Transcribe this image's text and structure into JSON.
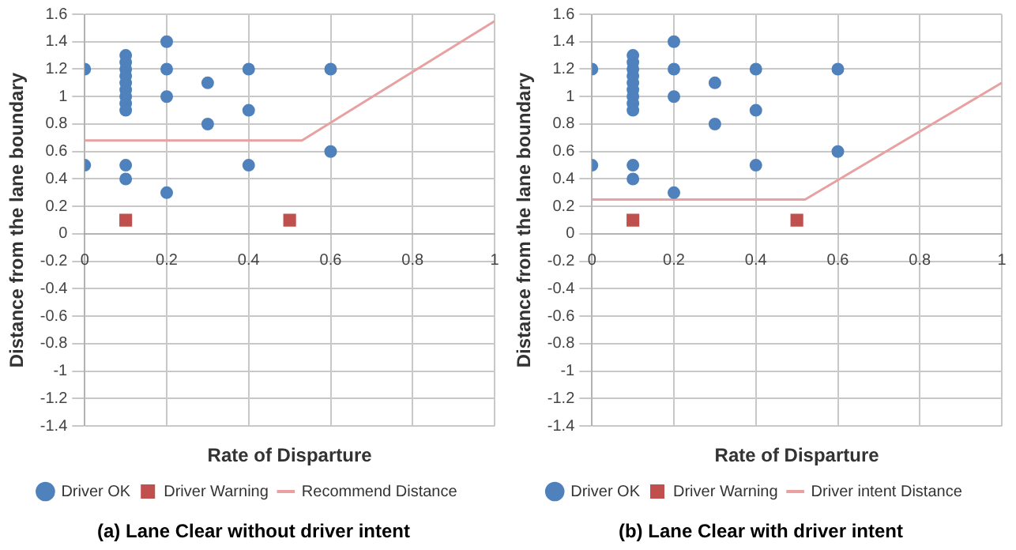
{
  "chart_data": [
    {
      "type": "scatter",
      "xlabel": "Rate of Disparture",
      "ylabel": "Distance from the lane boundary",
      "annotations": [
        "(a) Lane Clear without driver intent"
      ],
      "xlim": [
        0,
        1
      ],
      "xticks": [
        0,
        0.2,
        0.4,
        0.6,
        0.8,
        1
      ],
      "ylim": [
        -1.4,
        1.6
      ],
      "yticks": [
        -1.4,
        -1.2,
        -1,
        -0.8,
        -0.6,
        -0.4,
        -0.2,
        0,
        0.2,
        0.4,
        0.6,
        0.8,
        1,
        1.2,
        1.4,
        1.6
      ],
      "grid": true,
      "legend": "bottom",
      "series": [
        {
          "name": "Driver OK",
          "color": "#4f81bd",
          "marker": "circle",
          "x": [
            0,
            0,
            0.1,
            0.1,
            0.1,
            0.1,
            0.1,
            0.1,
            0.1,
            0.1,
            0.1,
            0.1,
            0.1,
            0.2,
            0.2,
            0.2,
            0.2,
            0.3,
            0.3,
            0.4,
            0.4,
            0.4,
            0.6,
            0.6
          ],
          "values": [
            1.2,
            0.5,
            1.3,
            1.25,
            1.2,
            1.15,
            1.1,
            1.05,
            1,
            0.95,
            0.9,
            0.5,
            0.4,
            1.4,
            1.2,
            1,
            0.3,
            1.1,
            0.8,
            1.2,
            0.9,
            0.5,
            1.2,
            0.6
          ]
        },
        {
          "name": "Driver Warning",
          "color": "#c0504d",
          "marker": "square",
          "x": [
            0.1,
            0.5
          ],
          "values": [
            0.1,
            0.1
          ]
        },
        {
          "name": "Recommend Distance",
          "type": "line",
          "color": "#e8a0a0",
          "marker": "none",
          "x": [
            0,
            0.53,
            1
          ],
          "values": [
            0.68,
            0.68,
            1.55
          ]
        }
      ]
    },
    {
      "type": "scatter",
      "xlabel": "Rate of Disparture",
      "ylabel": "Distance from the lane boundary",
      "annotations": [
        "(b) Lane Clear with driver intent"
      ],
      "xlim": [
        0,
        1
      ],
      "xticks": [
        0,
        0.2,
        0.4,
        0.6,
        0.8,
        1
      ],
      "ylim": [
        -1.4,
        1.6
      ],
      "yticks": [
        -1.4,
        -1.2,
        -1,
        -0.8,
        -0.6,
        -0.4,
        -0.2,
        0,
        0.2,
        0.4,
        0.6,
        0.8,
        1,
        1.2,
        1.4,
        1.6
      ],
      "grid": true,
      "legend": "bottom",
      "series": [
        {
          "name": "Driver OK",
          "color": "#4f81bd",
          "marker": "circle",
          "x": [
            0,
            0,
            0.1,
            0.1,
            0.1,
            0.1,
            0.1,
            0.1,
            0.1,
            0.1,
            0.1,
            0.1,
            0.1,
            0.2,
            0.2,
            0.2,
            0.2,
            0.3,
            0.3,
            0.4,
            0.4,
            0.4,
            0.6,
            0.6
          ],
          "values": [
            1.2,
            0.5,
            1.3,
            1.25,
            1.2,
            1.15,
            1.1,
            1.05,
            1,
            0.95,
            0.9,
            0.5,
            0.4,
            1.4,
            1.2,
            1,
            0.3,
            1.1,
            0.8,
            1.2,
            0.9,
            0.5,
            1.2,
            0.6
          ]
        },
        {
          "name": "Driver Warning",
          "color": "#c0504d",
          "marker": "square",
          "x": [
            0.1,
            0.5
          ],
          "values": [
            0.1,
            0.1
          ]
        },
        {
          "name": "Driver intent Distance",
          "type": "line",
          "color": "#e8a0a0",
          "marker": "none",
          "x": [
            0,
            0.52,
            1
          ],
          "values": [
            0.25,
            0.25,
            1.1
          ]
        }
      ]
    }
  ]
}
